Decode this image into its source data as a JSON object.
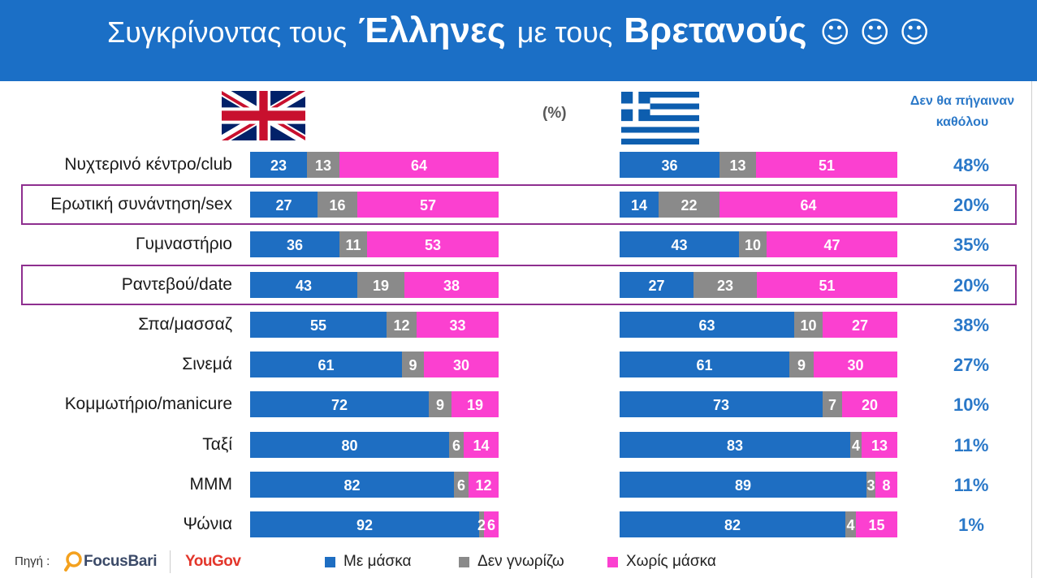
{
  "header": {
    "title_part1": "Συγκρίνοντας τους",
    "title_bold1": "Έλληνες",
    "title_part2": "με τους",
    "title_bold2": "Βρετανούς",
    "title_smileys": "☺ ☺ ☺"
  },
  "colors": {
    "header_background": "#1b6fc6",
    "title_text": "#ffffff",
    "highlight_box": "#8e2f8f",
    "side_column_text": "#2a78c8"
  },
  "footer": {
    "source_label": "Πηγή :",
    "logos": [
      {
        "icon": "focusbari-logo",
        "text": "FocusBari"
      },
      {
        "icon": "yougov-logo",
        "text": "YouGov"
      }
    ]
  },
  "chart_data": {
    "type": "bar",
    "orientation": "horizontal",
    "stacked": true,
    "unit": "(%)",
    "xlim": [
      0,
      100
    ],
    "legend_position": "bottom",
    "categories": [
      "Νυχτερινό κέντρο/club",
      "Ερωτική συνάντηση/sex",
      "Γυμναστήριο",
      "Ραντεβού/date",
      "Σπα/μασσαζ",
      "Σινεμά",
      "Κομμωτήριο/manicure",
      "Ταξί",
      "ΜΜΜ",
      "Ψώνια"
    ],
    "highlighted_categories": [
      "Ερωτική συνάντηση/sex",
      "Ραντεβού/date"
    ],
    "panels": [
      {
        "flag": "uk-flag-icon",
        "series": [
          {
            "name": "Με μάσκα",
            "color": "#1e6ec2",
            "values": [
              23,
              27,
              36,
              43,
              55,
              61,
              72,
              80,
              82,
              92
            ]
          },
          {
            "name": "Δεν γνωρίζω",
            "color": "#8a8a8a",
            "values": [
              13,
              16,
              11,
              19,
              12,
              9,
              9,
              6,
              6,
              2
            ]
          },
          {
            "name": "Χωρίς μάσκα",
            "color": "#fb40d0",
            "values": [
              64,
              57,
              53,
              38,
              33,
              30,
              19,
              14,
              12,
              6
            ]
          }
        ]
      },
      {
        "flag": "greece-flag-icon",
        "series": [
          {
            "name": "Με μάσκα",
            "color": "#1e6ec2",
            "values": [
              36,
              14,
              43,
              27,
              63,
              61,
              73,
              83,
              89,
              82
            ]
          },
          {
            "name": "Δεν γνωρίζω",
            "color": "#8a8a8a",
            "values": [
              13,
              22,
              10,
              23,
              10,
              9,
              7,
              4,
              3,
              4
            ]
          },
          {
            "name": "Χωρίς μάσκα",
            "color": "#fb40d0",
            "values": [
              51,
              64,
              47,
              51,
              27,
              30,
              20,
              13,
              8,
              15
            ]
          }
        ]
      }
    ],
    "side_column": {
      "header": [
        "Δεν θα πήγαιναν",
        "καθόλου"
      ],
      "values": [
        "48%",
        "20%",
        "35%",
        "20%",
        "38%",
        "27%",
        "10%",
        "11%",
        "11%",
        "1%"
      ]
    }
  }
}
